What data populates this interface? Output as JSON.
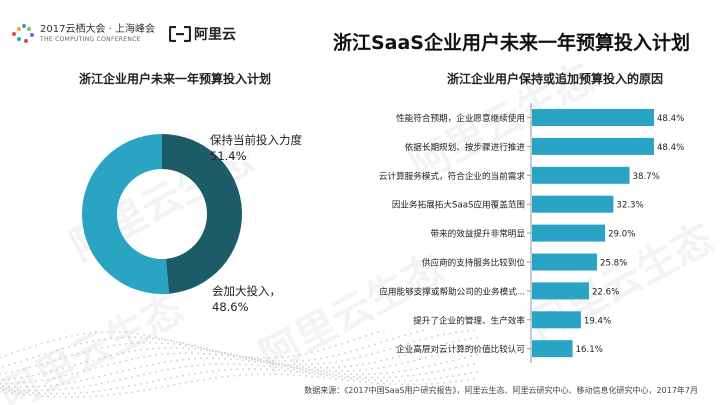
{
  "header": {
    "conference_title": "2017云栖大会 · 上海峰会",
    "conference_sub": "THE COMPUTING CONFERENCE",
    "brand": "阿里云",
    "page_title": "浙江SaaS企业用户未来一年预算投入计划"
  },
  "watermark": "阿里云生态",
  "colors": {
    "accent": "#2ba4c4",
    "dark": "#1c5c67",
    "bar": "#29a4c4"
  },
  "left_panel": {
    "title": "浙江企业用户未来一年预算投入计划"
  },
  "right_panel": {
    "title": "浙江企业用户保持或追加预算投入的原因"
  },
  "footer": {
    "source": "数据来源：《2017中国SaaS用户研究报告》，阿里云生态、阿里云研究中心、移动信息化研究中心，2017年7月"
  },
  "chart_data": [
    {
      "type": "pie",
      "title": "浙江企业用户未来一年预算投入计划",
      "slices": [
        {
          "name": "保持当前投入力度",
          "value": 51.4,
          "label": "51.4%"
        },
        {
          "name": "会加大投入，",
          "value": 48.6,
          "label": "48.6%"
        }
      ]
    },
    {
      "type": "bar",
      "orientation": "horizontal",
      "title": "浙江企业用户保持或追加预算投入的原因",
      "categories": [
        "性能符合预期，企业愿意继续使用",
        "依据长期规划、按步骤进行推进",
        "云计算服务模式，符合企业的当前需求",
        "因业务拓展拓大SaaS应用覆盖范围",
        "带来的效益提升非常明显",
        "供应商的支持服务比较到位",
        "应用能够支撑或帮助公司的业务模式...",
        "提升了企业的管理、生产效率",
        "企业高层对云计算的价值比较认可"
      ],
      "values": [
        48.4,
        48.4,
        38.7,
        32.3,
        29.0,
        25.8,
        22.6,
        19.4,
        16.1
      ],
      "value_labels": [
        "48.4%",
        "48.4%",
        "38.7%",
        "32.3%",
        "29.0%",
        "25.8%",
        "22.6%",
        "19.4%",
        "16.1%"
      ],
      "xlim": [
        0,
        50
      ]
    }
  ]
}
